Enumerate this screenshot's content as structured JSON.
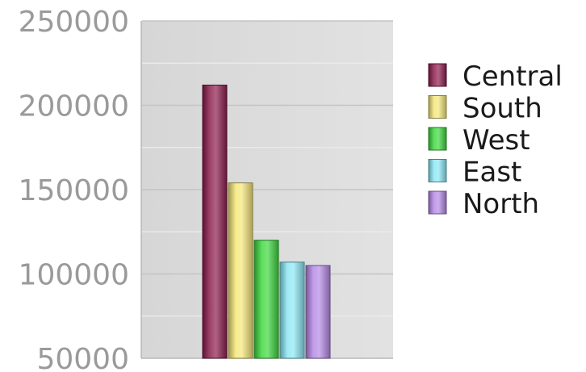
{
  "chart_data": {
    "type": "bar",
    "categories": [
      "Central",
      "South",
      "West",
      "East",
      "North"
    ],
    "values": [
      212000,
      154000,
      120000,
      107000,
      105000
    ],
    "colors": [
      "#8e1f4f",
      "#f5e67a",
      "#3fd83f",
      "#8ce8f5",
      "#b68ae6"
    ],
    "ylim": [
      50000,
      250000
    ],
    "yticks": [
      50000,
      100000,
      150000,
      200000,
      250000
    ],
    "ytick_labels": [
      "50000",
      "100000",
      "150000",
      "200000",
      "250000"
    ],
    "grid": true,
    "legend": "right",
    "legend_entries": [
      "Central",
      "South",
      "West",
      "East",
      "North"
    ]
  }
}
